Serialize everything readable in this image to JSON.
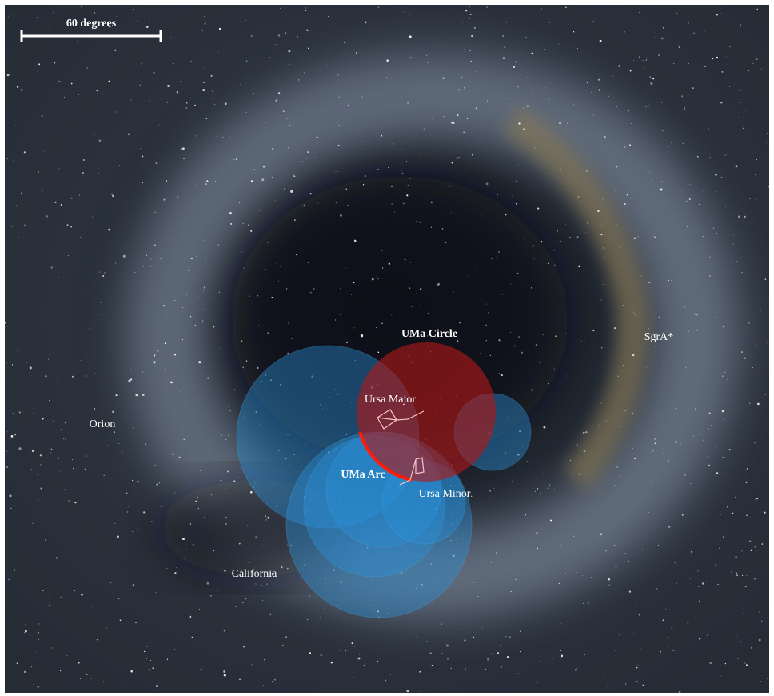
{
  "scale_bar": {
    "label": "60 degrees"
  },
  "labels": {
    "uma_circle": "UMa Circle",
    "ursa_major": "Ursa Major",
    "uma_arc": "UMa Arc",
    "ursa_minor": "Ursa Minor",
    "orion": "Orion",
    "california": "California",
    "sgra": "SgrA*"
  }
}
